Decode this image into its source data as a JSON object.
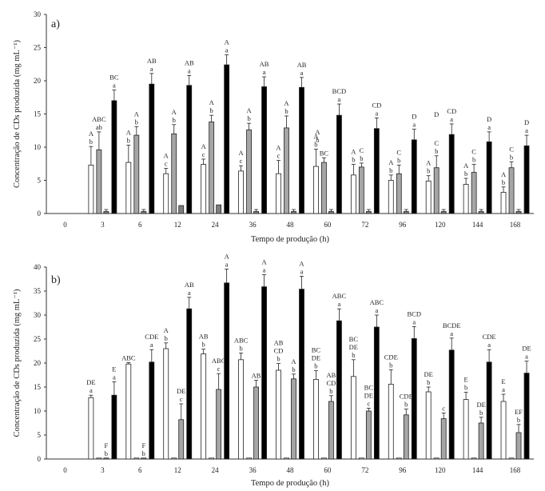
{
  "chart_data": [
    {
      "type": "bar",
      "panel_label": "a)",
      "xlabel": "Tempo de produção (h)",
      "ylabel": "Concentração de CDs produzida (mg mL⁻¹)",
      "ylim": [
        0,
        30
      ],
      "yticks": [
        0,
        5,
        10,
        15,
        20,
        25,
        30
      ],
      "grid": false,
      "legend": "none",
      "categories": [
        "0",
        "3",
        "6",
        "12",
        "24",
        "36",
        "48",
        "60",
        "72",
        "96",
        "120",
        "144",
        "168"
      ],
      "series": [
        {
          "fill": "#ffffff",
          "values": [
            0,
            7.3,
            7.7,
            6.0,
            7.4,
            6.4,
            6.0,
            7.1,
            5.8,
            5.0,
            4.9,
            4.4,
            3.2
          ],
          "errors": [
            0,
            2.8,
            2.6,
            0.8,
            0.8,
            0.8,
            2.0,
            2.6,
            1.6,
            0.8,
            0.8,
            0.9,
            0.8
          ],
          "labels": [
            "",
            "A\nb",
            "A\nb",
            "A\nc",
            "A\nc",
            "A\nc",
            "A\nc",
            "A\nb",
            "A\nb",
            "A\nb",
            "A\nb",
            "A\nb",
            "A\nb"
          ]
        },
        {
          "fill": "#a6a6a6",
          "values": [
            0,
            9.6,
            11.8,
            12.0,
            13.8,
            12.6,
            12.9,
            7.7,
            7.0,
            6.0,
            6.9,
            6.2,
            6.9
          ],
          "errors": [
            0,
            2.7,
            1.3,
            1.4,
            1.0,
            1.0,
            1.8,
            0.7,
            0.6,
            1.3,
            1.8,
            1.2,
            0.9
          ],
          "labels": [
            "",
            "ABC\nab",
            "A\nb",
            "A\nb",
            "A\nb",
            "A\nb",
            "A\nb",
            "BC",
            "C\nb",
            "C\nb",
            "C\nb",
            "C\nb",
            "C\nb"
          ]
        },
        {
          "fill": "#7f7f7f",
          "values": [
            0,
            0.3,
            0.3,
            1.2,
            1.3,
            0.3,
            0.3,
            0.3,
            0.3,
            0.3,
            0.3,
            0.3,
            0.3
          ],
          "errors": [
            0,
            0.3,
            0.3,
            0,
            0,
            0.3,
            0.3,
            0.3,
            0.3,
            0.3,
            0.3,
            0.3,
            0.3
          ],
          "labels": [
            "",
            "",
            "",
            "",
            "",
            "",
            "",
            "",
            "",
            "",
            "",
            "",
            ""
          ]
        },
        {
          "fill": "#000000",
          "values": [
            0,
            17.0,
            19.5,
            19.3,
            22.4,
            19.1,
            19.0,
            14.8,
            12.8,
            11.1,
            11.9,
            10.8,
            10.2
          ],
          "errors": [
            0,
            1.6,
            1.6,
            1.5,
            1.5,
            1.5,
            1.5,
            1.7,
            1.6,
            1.6,
            1.6,
            1.5,
            1.6
          ],
          "labels": [
            "",
            "BC\na",
            "AB\na",
            "AB\na",
            "A\na",
            "AB\na",
            "AB\na",
            "BCD\na",
            "CD\na",
            "D\na",
            "CD\na",
            "D\na",
            "D\na"
          ]
        }
      ],
      "annotations": [
        {
          "category": "60",
          "text": "A"
        },
        {
          "category": "60",
          "text": "b"
        },
        {
          "category": "120",
          "text": "D"
        }
      ]
    },
    {
      "type": "bar",
      "panel_label": "b)",
      "xlabel": "Tempo de produção (h)",
      "ylabel": "Concentração de CDs produzida (mg mL⁻¹)",
      "ylim": [
        0,
        40
      ],
      "yticks": [
        0,
        5,
        10,
        15,
        20,
        25,
        30,
        35,
        40
      ],
      "grid": false,
      "legend": "none",
      "categories": [
        "0",
        "3",
        "6",
        "12",
        "24",
        "36",
        "48",
        "60",
        "72",
        "96",
        "120",
        "144",
        "168"
      ],
      "series": [
        {
          "fill": "#ffffff",
          "values": [
            0,
            12.8,
            19.8,
            23.0,
            21.9,
            20.7,
            18.5,
            16.6,
            17.2,
            15.6,
            14.0,
            12.4,
            12.0
          ],
          "errors": [
            0,
            0.5,
            0.3,
            1.2,
            1.0,
            1.4,
            1.4,
            1.8,
            3.5,
            3.0,
            1.0,
            1.5,
            1.5
          ],
          "labels": [
            "",
            "DE\na",
            "ABC",
            "A\nb",
            "AB\nb",
            "ABC\nb",
            "AB\nCD\nb",
            "BC\nDE\nb",
            "BC\nDE\nb",
            "CDE\nb",
            "DE\nb",
            "E\nb",
            "E\na"
          ]
        },
        {
          "fill": "#ffffff",
          "values": [
            0,
            0.2,
            0.2,
            0.2,
            0.2,
            0.2,
            0.2,
            0.2,
            0.2,
            0.2,
            0.2,
            0.2,
            0.2
          ],
          "errors": [
            0,
            0,
            0,
            0,
            0,
            0,
            0,
            0,
            0,
            0,
            0,
            0,
            0
          ],
          "labels": [
            "",
            "",
            "",
            "",
            "",
            "",
            "",
            "",
            "",
            "",
            "",
            "",
            ""
          ]
        },
        {
          "fill": "#a6a6a6",
          "values": [
            0,
            0.2,
            0.2,
            8.2,
            14.5,
            15.0,
            16.7,
            12.0,
            10.0,
            9.2,
            8.4,
            7.5,
            5.5
          ],
          "errors": [
            0,
            0,
            0,
            3.3,
            3.3,
            1.4,
            1.0,
            1.2,
            0.6,
            1.2,
            1.2,
            1.2,
            1.7
          ],
          "labels": [
            "",
            "F\nb",
            "F\nb",
            "DE\nc",
            "ABC\nc",
            "AB",
            "A\nb",
            "AB\nCD\nb",
            "BC\nDE\nc",
            "CDE\nb",
            "c",
            "DE\nb",
            "EF\nb"
          ]
        },
        {
          "fill": "#000000",
          "values": [
            0,
            13.3,
            20.2,
            31.3,
            36.7,
            35.9,
            35.4,
            28.8,
            27.5,
            25.1,
            22.7,
            20.2,
            17.9
          ],
          "errors": [
            0,
            2.8,
            2.6,
            2.4,
            2.9,
            2.5,
            2.7,
            2.5,
            2.5,
            2.5,
            2.5,
            2.6,
            2.5
          ],
          "labels": [
            "",
            "E\na",
            "CDE\na",
            "AB\na",
            "A\na",
            "A\na",
            "A\na",
            "ABC\na",
            "ABC\na",
            "BCD\na",
            "BCDE\na",
            "CDE\na",
            "DE\na"
          ]
        }
      ]
    }
  ]
}
